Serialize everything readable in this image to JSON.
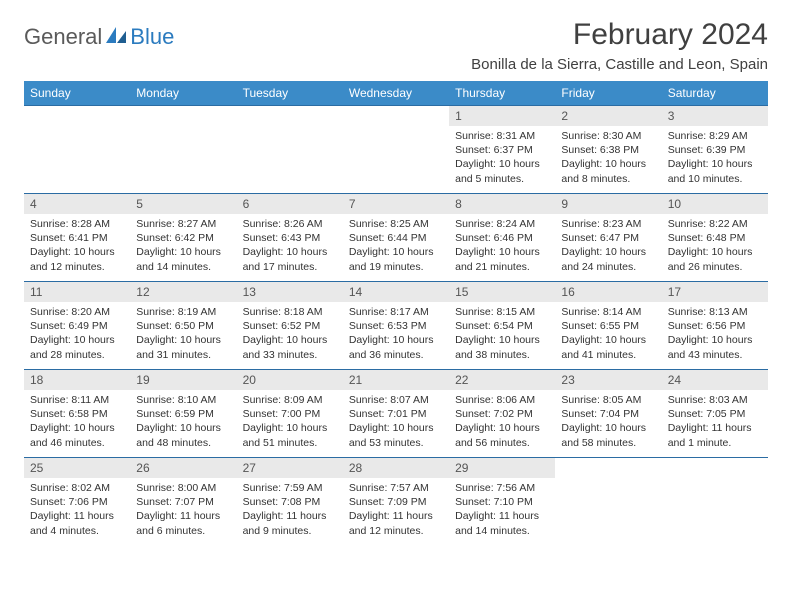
{
  "brand": {
    "part1": "General",
    "part2": "Blue"
  },
  "title": "February 2024",
  "location": "Bonilla de la Sierra, Castille and Leon, Spain",
  "colors": {
    "header_bg": "#3b8bc8",
    "header_text": "#ffffff",
    "daynum_bg": "#e9e9e9",
    "border": "#2b6ca3",
    "brand_gray": "#5a5a5a",
    "brand_blue": "#2b7bbf"
  },
  "weekdays": [
    "Sunday",
    "Monday",
    "Tuesday",
    "Wednesday",
    "Thursday",
    "Friday",
    "Saturday"
  ],
  "weeks": [
    [
      null,
      null,
      null,
      null,
      {
        "n": "1",
        "sr": "8:31 AM",
        "ss": "6:37 PM",
        "dl": "10 hours and 5 minutes."
      },
      {
        "n": "2",
        "sr": "8:30 AM",
        "ss": "6:38 PM",
        "dl": "10 hours and 8 minutes."
      },
      {
        "n": "3",
        "sr": "8:29 AM",
        "ss": "6:39 PM",
        "dl": "10 hours and 10 minutes."
      }
    ],
    [
      {
        "n": "4",
        "sr": "8:28 AM",
        "ss": "6:41 PM",
        "dl": "10 hours and 12 minutes."
      },
      {
        "n": "5",
        "sr": "8:27 AM",
        "ss": "6:42 PM",
        "dl": "10 hours and 14 minutes."
      },
      {
        "n": "6",
        "sr": "8:26 AM",
        "ss": "6:43 PM",
        "dl": "10 hours and 17 minutes."
      },
      {
        "n": "7",
        "sr": "8:25 AM",
        "ss": "6:44 PM",
        "dl": "10 hours and 19 minutes."
      },
      {
        "n": "8",
        "sr": "8:24 AM",
        "ss": "6:46 PM",
        "dl": "10 hours and 21 minutes."
      },
      {
        "n": "9",
        "sr": "8:23 AM",
        "ss": "6:47 PM",
        "dl": "10 hours and 24 minutes."
      },
      {
        "n": "10",
        "sr": "8:22 AM",
        "ss": "6:48 PM",
        "dl": "10 hours and 26 minutes."
      }
    ],
    [
      {
        "n": "11",
        "sr": "8:20 AM",
        "ss": "6:49 PM",
        "dl": "10 hours and 28 minutes."
      },
      {
        "n": "12",
        "sr": "8:19 AM",
        "ss": "6:50 PM",
        "dl": "10 hours and 31 minutes."
      },
      {
        "n": "13",
        "sr": "8:18 AM",
        "ss": "6:52 PM",
        "dl": "10 hours and 33 minutes."
      },
      {
        "n": "14",
        "sr": "8:17 AM",
        "ss": "6:53 PM",
        "dl": "10 hours and 36 minutes."
      },
      {
        "n": "15",
        "sr": "8:15 AM",
        "ss": "6:54 PM",
        "dl": "10 hours and 38 minutes."
      },
      {
        "n": "16",
        "sr": "8:14 AM",
        "ss": "6:55 PM",
        "dl": "10 hours and 41 minutes."
      },
      {
        "n": "17",
        "sr": "8:13 AM",
        "ss": "6:56 PM",
        "dl": "10 hours and 43 minutes."
      }
    ],
    [
      {
        "n": "18",
        "sr": "8:11 AM",
        "ss": "6:58 PM",
        "dl": "10 hours and 46 minutes."
      },
      {
        "n": "19",
        "sr": "8:10 AM",
        "ss": "6:59 PM",
        "dl": "10 hours and 48 minutes."
      },
      {
        "n": "20",
        "sr": "8:09 AM",
        "ss": "7:00 PM",
        "dl": "10 hours and 51 minutes."
      },
      {
        "n": "21",
        "sr": "8:07 AM",
        "ss": "7:01 PM",
        "dl": "10 hours and 53 minutes."
      },
      {
        "n": "22",
        "sr": "8:06 AM",
        "ss": "7:02 PM",
        "dl": "10 hours and 56 minutes."
      },
      {
        "n": "23",
        "sr": "8:05 AM",
        "ss": "7:04 PM",
        "dl": "10 hours and 58 minutes."
      },
      {
        "n": "24",
        "sr": "8:03 AM",
        "ss": "7:05 PM",
        "dl": "11 hours and 1 minute."
      }
    ],
    [
      {
        "n": "25",
        "sr": "8:02 AM",
        "ss": "7:06 PM",
        "dl": "11 hours and 4 minutes."
      },
      {
        "n": "26",
        "sr": "8:00 AM",
        "ss": "7:07 PM",
        "dl": "11 hours and 6 minutes."
      },
      {
        "n": "27",
        "sr": "7:59 AM",
        "ss": "7:08 PM",
        "dl": "11 hours and 9 minutes."
      },
      {
        "n": "28",
        "sr": "7:57 AM",
        "ss": "7:09 PM",
        "dl": "11 hours and 12 minutes."
      },
      {
        "n": "29",
        "sr": "7:56 AM",
        "ss": "7:10 PM",
        "dl": "11 hours and 14 minutes."
      },
      null,
      null
    ]
  ],
  "labels": {
    "sunrise": "Sunrise:",
    "sunset": "Sunset:",
    "daylight": "Daylight:"
  }
}
